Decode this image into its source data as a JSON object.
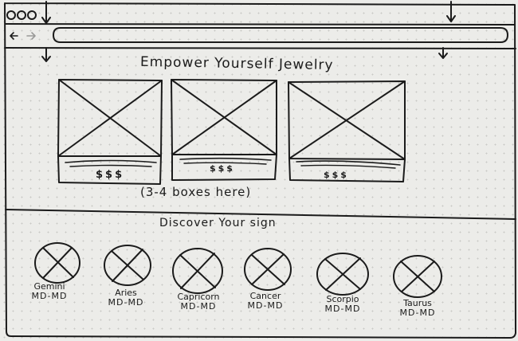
{
  "header": {
    "title": "Empower Yourself Jewelry",
    "note": "(3-4 boxes here)"
  },
  "products": [
    {
      "price": "$$$"
    },
    {
      "price": "$$$"
    },
    {
      "price": "$$$"
    }
  ],
  "signs_section": {
    "title": "Discover Your sign",
    "signs": [
      {
        "name": "Gemini",
        "dates": "MD-MD"
      },
      {
        "name": "Aries",
        "dates": "MD-MD"
      },
      {
        "name": "Capricorn",
        "dates": "MD-MD"
      },
      {
        "name": "Cancer",
        "dates": "MD-MD"
      },
      {
        "name": "Scorpio",
        "dates": "MD-MD"
      },
      {
        "name": "Taurus",
        "dates": "MD-MD"
      }
    ]
  },
  "icons": [
    "close-dot-icon",
    "minimize-dot-icon",
    "maximize-dot-icon",
    "back-arrow-icon",
    "forward-arrow-icon",
    "scroll-down-arrow-icon"
  ],
  "colors": {
    "ink": "#1b1b1b",
    "paper": "#ecece9",
    "dots": "#c9c9c5"
  }
}
